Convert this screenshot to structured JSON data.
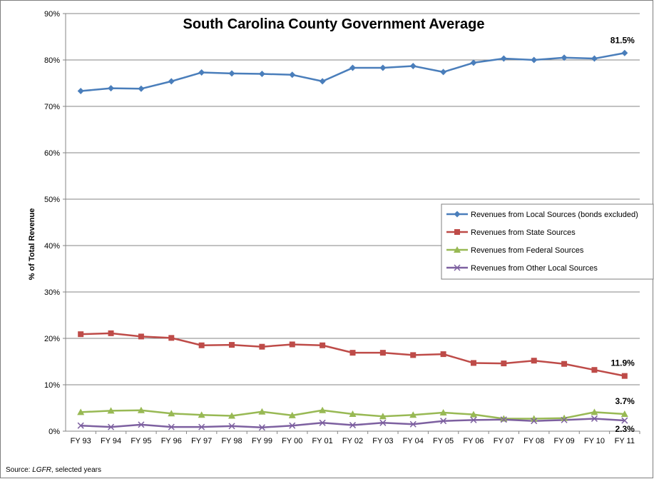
{
  "chart_data": {
    "type": "line",
    "title": "South Carolina County Government Average",
    "ylabel": "% of Total Revenue",
    "xlabel": "",
    "ylim": [
      0,
      90
    ],
    "ytick_step": 10,
    "ytick_labels": [
      "0%",
      "10%",
      "20%",
      "30%",
      "40%",
      "50%",
      "60%",
      "70%",
      "80%",
      "90%"
    ],
    "grid": "horizontal",
    "legend_position": "right",
    "categories": [
      "FY 93",
      "FY 94",
      "FY 95",
      "FY 96",
      "FY 97",
      "FY 98",
      "FY 99",
      "FY 00",
      "FY 01",
      "FY 02",
      "FY 03",
      "FY 04",
      "FY 05",
      "FY 06",
      "FY 07",
      "FY 08",
      "FY 09",
      "FY 10",
      "FY 11"
    ],
    "series": [
      {
        "name": "Revenues from Local Sources (bonds excluded)",
        "color": "#4a7ebb",
        "marker": "diamond",
        "values": [
          73.3,
          73.9,
          73.8,
          75.4,
          77.3,
          77.1,
          77.0,
          76.8,
          75.4,
          78.3,
          78.3,
          78.7,
          77.4,
          79.4,
          80.3,
          80.0,
          80.5,
          80.3,
          81.5
        ],
        "end_label": "81.5%"
      },
      {
        "name": "Revenues from State Sources",
        "color": "#be4b48",
        "marker": "square",
        "values": [
          20.9,
          21.1,
          20.4,
          20.1,
          18.5,
          18.6,
          18.2,
          18.7,
          18.5,
          16.9,
          16.9,
          16.4,
          16.6,
          14.7,
          14.6,
          15.2,
          14.5,
          13.2,
          11.9
        ],
        "end_label": "11.9%"
      },
      {
        "name": "Revenues from Federal Sources",
        "color": "#98b954",
        "marker": "triangle",
        "values": [
          4.1,
          4.4,
          4.5,
          3.8,
          3.5,
          3.3,
          4.2,
          3.4,
          4.5,
          3.7,
          3.2,
          3.5,
          4.0,
          3.6,
          2.7,
          2.7,
          2.8,
          4.1,
          3.7
        ],
        "end_label": "3.7%"
      },
      {
        "name": "Revenues from Other Local Sources",
        "color": "#7d60a0",
        "marker": "x",
        "values": [
          1.2,
          0.9,
          1.4,
          0.9,
          0.9,
          1.1,
          0.8,
          1.2,
          1.8,
          1.3,
          1.8,
          1.5,
          2.2,
          2.4,
          2.5,
          2.2,
          2.4,
          2.7,
          2.3
        ],
        "end_label": "2.3%"
      }
    ]
  },
  "source_prefix": "Source: ",
  "source_name": "LGFR",
  "source_suffix": ", selected years"
}
